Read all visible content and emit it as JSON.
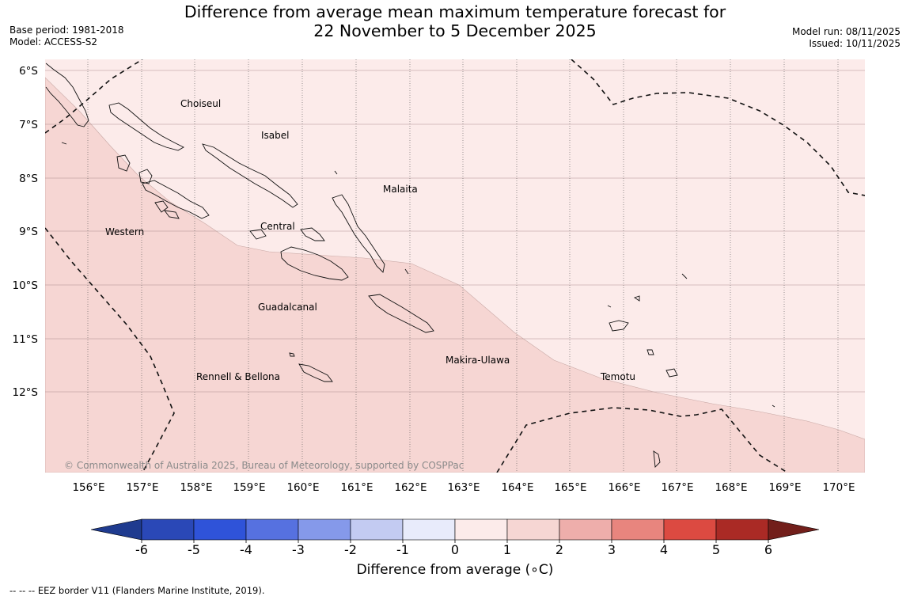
{
  "title": {
    "line1": "Difference from average mean maximum temperature forecast for",
    "line2": "22 November to 5 December 2025"
  },
  "meta_left": {
    "base_period": "Base period: 1981-2018",
    "model": "Model: ACCESS-S2"
  },
  "meta_right": {
    "model_run": "Model run: 08/11/2025",
    "issued": "Issued: 10/11/2025"
  },
  "map": {
    "lat_labels": [
      "6°S",
      "7°S",
      "8°S",
      "9°S",
      "10°S",
      "11°S",
      "12°S"
    ],
    "lon_labels": [
      "156°E",
      "157°E",
      "158°E",
      "159°E",
      "160°E",
      "161°E",
      "162°E",
      "163°E",
      "164°E",
      "165°E",
      "166°E",
      "167°E",
      "168°E",
      "169°E",
      "170°E"
    ],
    "regions": [
      "Choiseul",
      "Isabel",
      "Malaita",
      "Western",
      "Central",
      "Guadalcanal",
      "Makira-Ulawa",
      "Rennell & Bellona",
      "Temotu"
    ],
    "copyright": "© Commonwealth of Australia 2025, Bureau of Meteorology, supported by COSPPac",
    "fill_colors": {
      "zero_to_one": "#fcebea",
      "one_to_two": "#f6d6d3"
    }
  },
  "colorbar": {
    "ticks": [
      "-6",
      "-5",
      "-4",
      "-3",
      "-2",
      "-1",
      "0",
      "1",
      "2",
      "3",
      "4",
      "5",
      "6"
    ],
    "colors": [
      "#1f3b8f",
      "#2a48b7",
      "#2f53d9",
      "#5671e0",
      "#8599ea",
      "#c3cbf2",
      "#e8ebfb",
      "#fcebea",
      "#f6d6d3",
      "#eeaeab",
      "#e8857e",
      "#dc4a41",
      "#aa2a25",
      "#721f1b"
    ],
    "label": "Difference from average (∘C)"
  },
  "footnote": "-- -- -- EEZ border V11 (Flanders Marine Institute, 2019)."
}
